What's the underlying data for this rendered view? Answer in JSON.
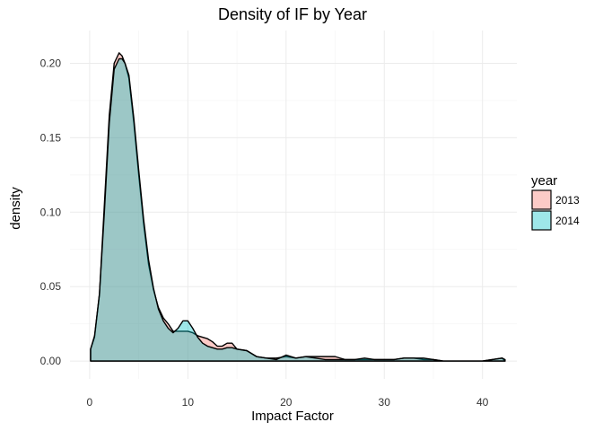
{
  "chart_data": {
    "type": "area",
    "title": "Density of IF by Year",
    "xlabel": "Impact Factor",
    "ylabel": "density",
    "xlim": [
      -2,
      43.5
    ],
    "ylim": [
      -0.012,
      0.222
    ],
    "xticks": [
      0,
      10,
      20,
      30,
      40
    ],
    "xtick_labels": [
      "0",
      "10",
      "20",
      "30",
      "40"
    ],
    "yticks": [
      0.0,
      0.05,
      0.1,
      0.15,
      0.2
    ],
    "ytick_labels": [
      "0.00",
      "0.05",
      "0.10",
      "0.15",
      "0.20"
    ],
    "grid": true,
    "legend": {
      "title": "year",
      "position": "right"
    },
    "series": [
      {
        "name": "2013",
        "color": "#F8766D",
        "x": [
          0.1,
          0.5,
          1,
          1.5,
          2,
          2.5,
          3,
          3.3,
          3.6,
          4,
          4.5,
          5,
          5.5,
          6,
          6.5,
          7,
          7.5,
          8,
          8.5,
          9,
          9.5,
          10,
          10.5,
          11,
          11.5,
          12,
          12.5,
          13,
          13.5,
          14,
          14.5,
          15,
          16,
          17,
          18,
          19,
          20,
          21,
          22,
          23,
          24,
          25,
          26,
          27,
          28,
          29,
          30,
          31,
          32,
          33,
          34,
          35,
          36,
          37,
          38,
          39,
          40,
          41,
          42,
          42.3
        ],
        "values": [
          0.008,
          0.016,
          0.045,
          0.105,
          0.165,
          0.2,
          0.207,
          0.205,
          0.2,
          0.19,
          0.16,
          0.125,
          0.092,
          0.065,
          0.048,
          0.036,
          0.029,
          0.025,
          0.02,
          0.02,
          0.02,
          0.02,
          0.019,
          0.017,
          0.016,
          0.015,
          0.013,
          0.01,
          0.01,
          0.012,
          0.012,
          0.008,
          0.007,
          0.003,
          0.002,
          0.002,
          0.003,
          0.002,
          0.003,
          0.003,
          0.003,
          0.003,
          0.001,
          0.001,
          0.001,
          0.001,
          0.001,
          0.001,
          0.002,
          0.002,
          0.001,
          0.001,
          0.0,
          0.0,
          0.0,
          0.0,
          0.0,
          0.001,
          0.002,
          0.0
        ]
      },
      {
        "name": "2014",
        "color": "#00BFC4",
        "x": [
          0.1,
          0.5,
          1,
          1.5,
          2,
          2.5,
          3,
          3.3,
          3.6,
          4,
          4.5,
          5,
          5.5,
          6,
          6.5,
          7,
          7.5,
          8,
          8.5,
          9,
          9.5,
          10,
          10.5,
          11,
          11.5,
          12,
          12.5,
          13,
          13.5,
          14,
          14.5,
          15,
          16,
          17,
          18,
          19,
          20,
          21,
          22,
          23,
          24,
          25,
          26,
          27,
          28,
          29,
          30,
          31,
          32,
          33,
          34,
          35,
          36,
          37,
          38,
          39,
          40,
          41,
          42,
          42.3
        ],
        "values": [
          0.008,
          0.017,
          0.045,
          0.1,
          0.16,
          0.196,
          0.203,
          0.203,
          0.2,
          0.192,
          0.163,
          0.128,
          0.095,
          0.068,
          0.049,
          0.035,
          0.027,
          0.022,
          0.019,
          0.022,
          0.027,
          0.027,
          0.022,
          0.016,
          0.012,
          0.01,
          0.009,
          0.008,
          0.008,
          0.009,
          0.009,
          0.008,
          0.007,
          0.003,
          0.002,
          0.001,
          0.004,
          0.002,
          0.003,
          0.002,
          0.001,
          0.001,
          0.001,
          0.001,
          0.002,
          0.001,
          0.001,
          0.001,
          0.002,
          0.002,
          0.002,
          0.001,
          0.0,
          0.0,
          0.0,
          0.0,
          0.0,
          0.001,
          0.002,
          0.001
        ]
      }
    ]
  }
}
